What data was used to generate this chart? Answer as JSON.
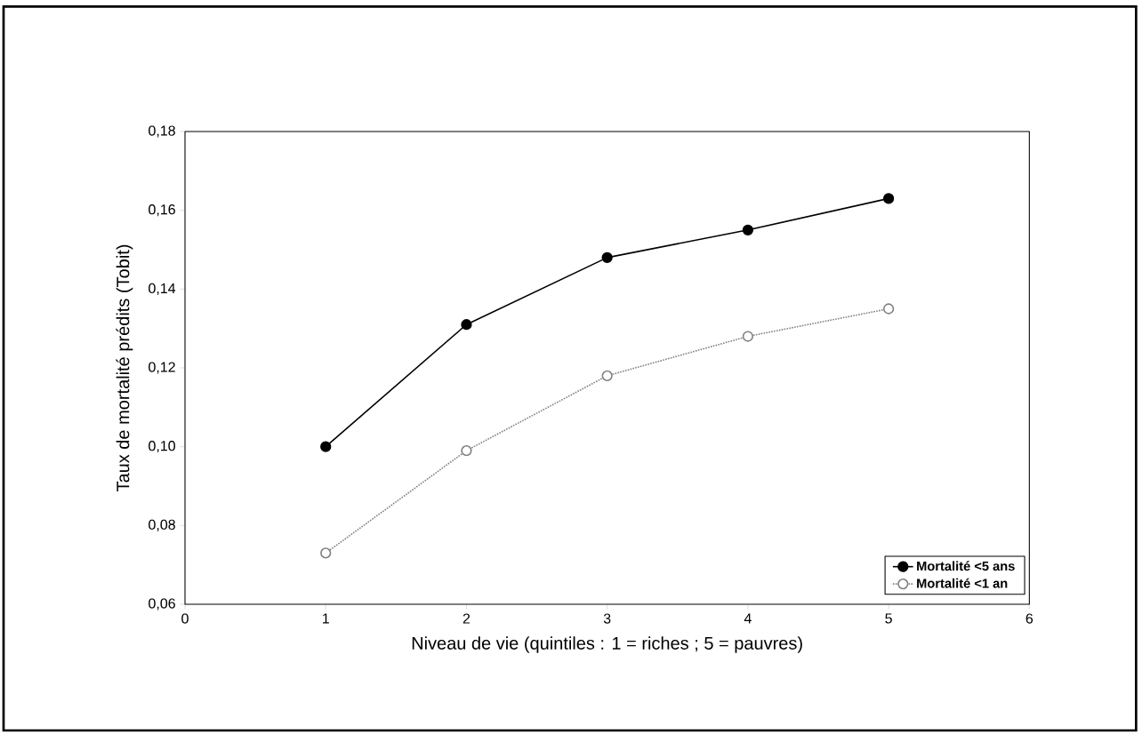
{
  "chart_data": {
    "type": "line",
    "xlabel": "Niveau de vie (quintiles : 1 = riches ; 5 = pauvres)",
    "ylabel": "Taux de mortalité prédits (Tobit)",
    "x": [
      1,
      2,
      3,
      4,
      5
    ],
    "series": [
      {
        "name": "Mortalité <5 ans",
        "color": "#000000",
        "line_style": "solid",
        "values": [
          0.1,
          0.131,
          0.148,
          0.155,
          0.163
        ]
      },
      {
        "name": "Mortalité <1 an",
        "color": "#808080",
        "line_style": "dotted",
        "values": [
          0.073,
          0.099,
          0.118,
          0.128,
          0.135
        ]
      }
    ],
    "xlim": [
      0,
      6
    ],
    "xticks": [
      0,
      1,
      2,
      3,
      4,
      5,
      6
    ],
    "ylim": [
      0.06,
      0.18
    ],
    "yticks": [
      {
        "value": 0.06,
        "label": "0,06"
      },
      {
        "value": 0.08,
        "label": "0,08"
      },
      {
        "value": 0.1,
        "label": "0,10"
      },
      {
        "value": 0.12,
        "label": "0,12"
      },
      {
        "value": 0.14,
        "label": "0,14"
      },
      {
        "value": 0.16,
        "label": "0,16"
      },
      {
        "value": 0.18,
        "label": "0,18"
      }
    ],
    "marker": "circle",
    "grid": false,
    "legend": "bottom right"
  }
}
